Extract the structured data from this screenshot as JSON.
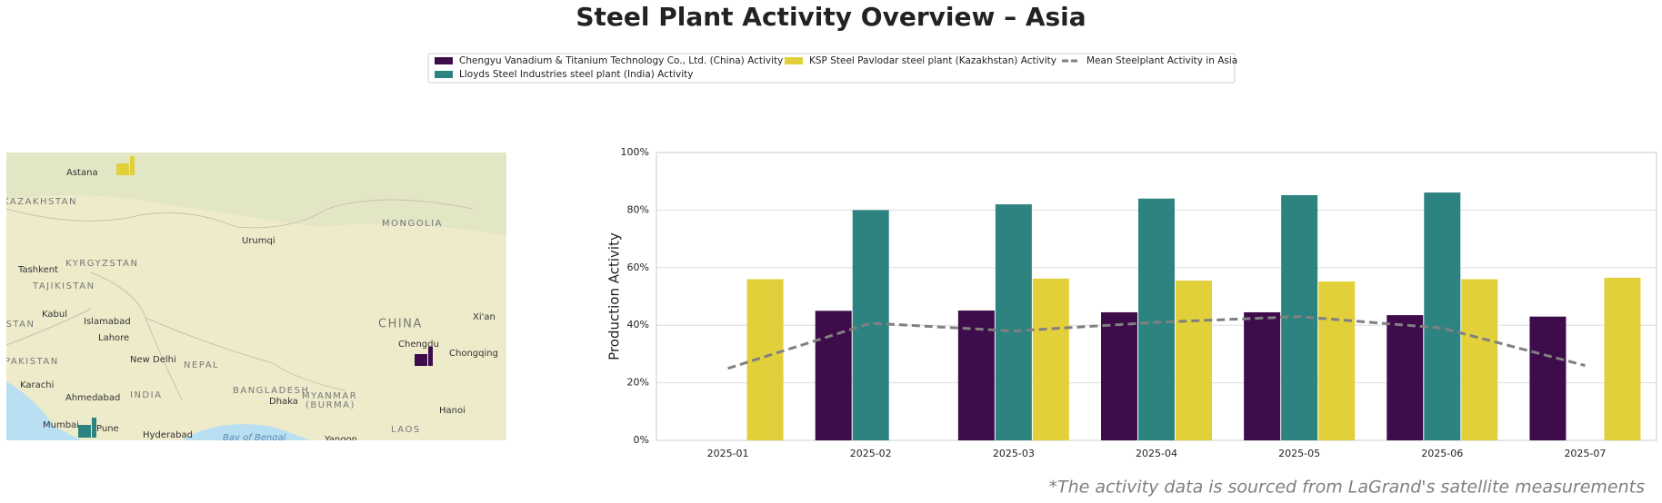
{
  "title": "Steel Plant Activity Overview – Asia",
  "footnote": "*The activity data is sourced from LaGrand's satellite measurements",
  "map": {
    "labels": [
      "Astana",
      "KAZAKHSTAN",
      "MONGOLIA",
      "Urumqi",
      "KYRGYZSTAN",
      "Tashkent",
      "TAJIKISTAN",
      "Kabul",
      "Islamabad",
      "ISTAN",
      "Lahore",
      "CHINA",
      "Xi'an",
      "Chengdu",
      "Chongqing",
      "New Delhi",
      "NEPAL",
      "PAKISTAN",
      "Karachi",
      "Ahmedabad",
      "INDIA",
      "BANGLADESH",
      "Dhaka",
      "MYANMAR",
      "(BURMA)",
      "Hanoi",
      "Mumbai",
      "Pune",
      "Hyderabad",
      "Bay of Bengal",
      "Yangon",
      "LAOS"
    ]
  },
  "chart_data": {
    "type": "bar",
    "ylabel": "Production Activity",
    "categories": [
      "2025-01",
      "2025-02",
      "2025-03",
      "2025-04",
      "2025-05",
      "2025-06",
      "2025-07"
    ],
    "series": [
      {
        "name": "Chengyu Vanadium & Titanium Technology Co., Ltd. (China) Activity",
        "color": "#3e0b4b",
        "values": [
          null,
          45,
          45.1,
          44.5,
          44.5,
          43.5,
          43
        ]
      },
      {
        "name": "Lloyds Steel Industries steel plant (India) Activity",
        "color": "#2c837f",
        "values": [
          null,
          80,
          82,
          84,
          85.2,
          86.1,
          null
        ]
      },
      {
        "name": "KSP Steel Pavlodar steel plant (Kazakhstan) Activity",
        "color": "#e2d03b",
        "values": [
          56,
          null,
          56.2,
          55.5,
          55.2,
          56,
          56.5
        ]
      },
      {
        "name": "Mean Steelplant Activity in Asia",
        "color": "#808080",
        "type": "line",
        "dashed": true,
        "values": [
          25,
          40.7,
          38,
          41,
          43,
          39,
          26
        ]
      }
    ],
    "ylim": [
      0,
      100
    ],
    "yticks": [
      {
        "value": 0,
        "label": "0%"
      },
      {
        "value": 20,
        "label": "20%"
      },
      {
        "value": 40,
        "label": "40%"
      },
      {
        "value": 60,
        "label": "60%"
      },
      {
        "value": 80,
        "label": "80%"
      },
      {
        "value": 100,
        "label": "100%"
      }
    ],
    "grid": true
  }
}
